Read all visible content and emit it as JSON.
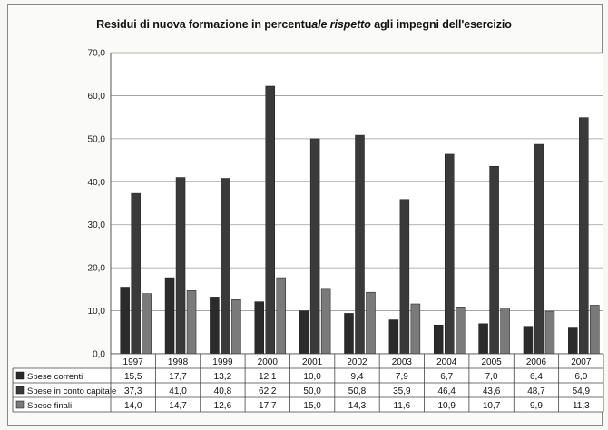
{
  "chart_data": {
    "type": "bar",
    "title_parts": [
      "Residui di nuova formazione in percentu",
      "ale rispetto",
      " agli impegni dell'esercizio"
    ],
    "title": "Residui di nuova formazione in percentuale rispetto agli impegni dell'esercizio",
    "categories": [
      "1997",
      "1998",
      "1999",
      "2000",
      "2001",
      "2002",
      "2003",
      "2004",
      "2005",
      "2006",
      "2007"
    ],
    "series": [
      {
        "name": "Spese correnti",
        "color": "#2b2b2b",
        "values": [
          15.5,
          17.7,
          13.2,
          12.1,
          10.0,
          9.4,
          7.9,
          6.7,
          7.0,
          6.4,
          6.0
        ],
        "labels": [
          "15,5",
          "17,7",
          "13,2",
          "12,1",
          "10,0",
          "9,4",
          "7,9",
          "6,7",
          "7,0",
          "6,4",
          "6,0"
        ]
      },
      {
        "name": "Spese in conto capitale",
        "color": "#3a3a3a",
        "values": [
          37.3,
          41.0,
          40.8,
          62.2,
          50.0,
          50.8,
          35.9,
          46.4,
          43.6,
          48.7,
          54.9
        ],
        "labels": [
          "37,3",
          "41,0",
          "40,8",
          "62,2",
          "50,0",
          "50,8",
          "35,9",
          "46,4",
          "43,6",
          "48,7",
          "54,9"
        ]
      },
      {
        "name": "Spese finali",
        "color": "#7a7a7a",
        "values": [
          14.0,
          14.7,
          12.6,
          17.7,
          15.0,
          14.3,
          11.6,
          10.9,
          10.7,
          9.9,
          11.3
        ],
        "labels": [
          "14,0",
          "14,7",
          "12,6",
          "17,7",
          "15,0",
          "14,3",
          "11,6",
          "10,9",
          "10,7",
          "9,9",
          "11,3"
        ]
      }
    ],
    "ylim": [
      0,
      70
    ],
    "yticks": [
      "0,0",
      "10,0",
      "20,0",
      "30,0",
      "40,0",
      "50,0",
      "60,0",
      "70,0"
    ],
    "grid": true,
    "legend": "data table"
  }
}
